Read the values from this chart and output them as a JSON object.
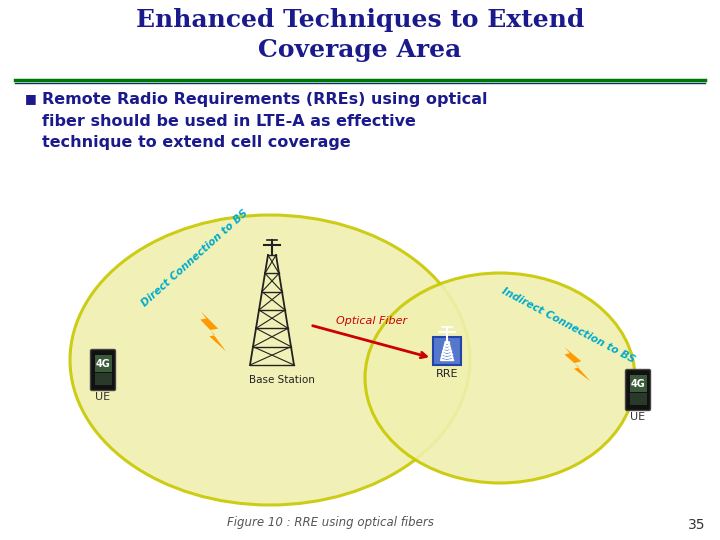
{
  "title_line1": "Enhanced Techniques to Extend",
  "title_line2": "Coverage Area",
  "title_color": "#1a1a8c",
  "title_fontsize": 18,
  "bullet_text": "Remote Radio Requirements (RREs) using optical\nfiber should be used in LTE-A as effective\ntechnique to extend cell coverage",
  "bullet_color": "#1a1a8c",
  "bullet_fontsize": 11.5,
  "fig_caption": "Figure 10 : RRE using optical fibers",
  "page_number": "35",
  "background_color": "#ffffff",
  "circle_fill": "#f0f0b0",
  "circle_edge": "#c8c800",
  "line_color_top": "#007700",
  "line_color_bottom": "#003366",
  "direct_conn_color": "#00aacc",
  "indirect_conn_color": "#00aacc",
  "optical_fiber_color": "#cc0000",
  "arrow_color": "#cc0000",
  "tower_color": "#222222",
  "phone_body": "#111111",
  "phone_screen_top": "#556655",
  "phone_screen_bot": "#334433",
  "rre_icon_color": "#5577cc",
  "rre_icon_edge": "#2244aa",
  "lightning_color": "#ff9900"
}
